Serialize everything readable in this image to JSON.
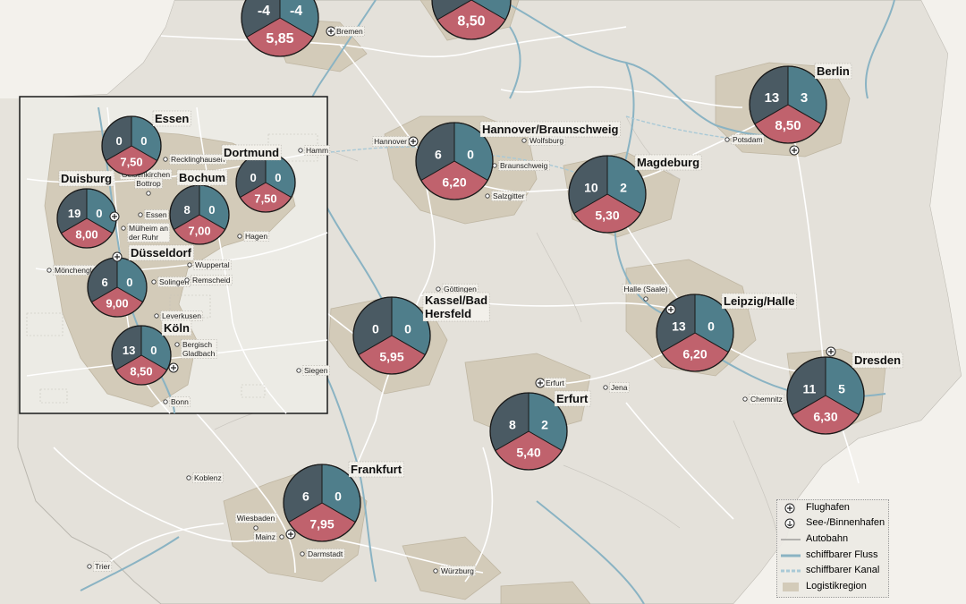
{
  "colors": {
    "left_sector": "#4a5a63",
    "right_sector": "#4f7e8b",
    "bottom_sector": "#c0626d",
    "land": "#e6e3dc",
    "region": "#d2c9b6",
    "river": "#8fb8c8",
    "road": "#ffffff"
  },
  "hubs": [
    {
      "id": "bremen",
      "name": "",
      "left": "-4",
      "right": "-4",
      "bottom": "5,85"
    },
    {
      "id": "hamburg",
      "name": "",
      "left": "",
      "right": "",
      "bottom": "8,50"
    },
    {
      "id": "berlin",
      "name": "Berlin",
      "left": "13",
      "right": "3",
      "bottom": "8,50"
    },
    {
      "id": "hannover",
      "name": "Hannover/Braunschweig",
      "left": "6",
      "right": "0",
      "bottom": "6,20"
    },
    {
      "id": "magdeburg",
      "name": "Magdeburg",
      "left": "10",
      "right": "2",
      "bottom": "5,30"
    },
    {
      "id": "kassel",
      "name": "Kassel/Bad\nHersfeld",
      "left": "0",
      "right": "0",
      "bottom": "5,95"
    },
    {
      "id": "leipzig",
      "name": "Leipzig/Halle",
      "left": "13",
      "right": "0",
      "bottom": "6,20"
    },
    {
      "id": "dresden",
      "name": "Dresden",
      "left": "11",
      "right": "5",
      "bottom": "6,30"
    },
    {
      "id": "erfurt",
      "name": "Erfurt",
      "left": "8",
      "right": "2",
      "bottom": "5,40"
    },
    {
      "id": "frankfurt",
      "name": "Frankfurt",
      "left": "6",
      "right": "0",
      "bottom": "7,95"
    },
    {
      "id": "essen",
      "name": "Essen",
      "left": "0",
      "right": "0",
      "bottom": "7,50"
    },
    {
      "id": "dortmund",
      "name": "Dortmund",
      "left": "0",
      "right": "0",
      "bottom": "7,50"
    },
    {
      "id": "duisburg",
      "name": "Duisburg",
      "left": "19",
      "right": "0",
      "bottom": "8,00"
    },
    {
      "id": "bochum",
      "name": "Bochum",
      "left": "8",
      "right": "0",
      "bottom": "7,00"
    },
    {
      "id": "duesseldorf",
      "name": "Düsseldorf",
      "left": "6",
      "right": "0",
      "bottom": "9,00"
    },
    {
      "id": "koeln",
      "name": "Köln",
      "left": "13",
      "right": "0",
      "bottom": "8,50"
    }
  ],
  "cities": [
    "Bremen",
    "Hannover",
    "Wolfsburg",
    "Braunschweig",
    "Salzgitter",
    "Potsdam",
    "Halle (Saale)",
    "Göttingen",
    "Erfurt",
    "Jena",
    "Chemnitz",
    "Koblenz",
    "Wiesbaden",
    "Mainz",
    "Darmstadt",
    "Trier",
    "Würzburg",
    "Hamm",
    "Recklinghausen",
    "Gelsenkirchen",
    "Bottrop",
    "Essen",
    "Mülheim an\nder Ruhr",
    "Hagen",
    "Wuppertal",
    "Mönchengladbach",
    "Solingen",
    "Remscheid",
    "Leverkusen",
    "Bergisch\nGladbach",
    "Siegen",
    "Bonn"
  ],
  "legend": {
    "items": [
      "Flughafen",
      "See-/Binnenhafen",
      "Autobahn",
      "schiffbarer Fluss",
      "schiffbarer Kanal",
      "Logistikregion"
    ]
  }
}
